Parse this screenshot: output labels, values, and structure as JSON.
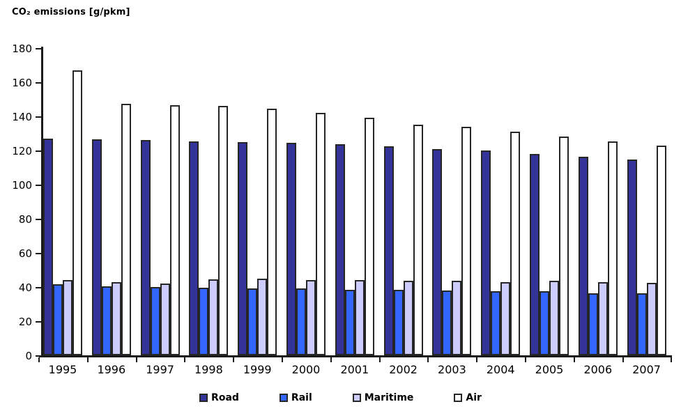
{
  "chart_data": {
    "type": "bar",
    "title": "CO₂ emissions [g/pkm]",
    "ylabel": "CO₂ emissions [g/pkm]",
    "xlabel": "",
    "categories": [
      "1995",
      "1996",
      "1997",
      "1998",
      "1999",
      "2000",
      "2001",
      "2002",
      "2003",
      "2004",
      "2005",
      "2006",
      "2007"
    ],
    "series": [
      {
        "name": "Road",
        "color": "#333399",
        "values": [
          127,
          126.5,
          126,
          125.5,
          125,
          124.5,
          123.5,
          122.5,
          121,
          120,
          118,
          116.5,
          114.5
        ]
      },
      {
        "name": "Rail",
        "color": "#3366FF",
        "values": [
          41.5,
          40.5,
          40,
          39.5,
          39,
          39,
          38.5,
          38.5,
          38,
          37.5,
          37.5,
          36.5,
          36.5
        ]
      },
      {
        "name": "Maritime",
        "color": "#CCCCFF",
        "values": [
          44,
          43,
          42,
          44.5,
          45,
          44,
          44,
          43.5,
          43.5,
          43,
          43.5,
          43,
          42.5
        ]
      },
      {
        "name": "Air",
        "color": "#FFFFFF",
        "values": [
          167,
          147.5,
          146.5,
          146,
          144.5,
          142,
          139,
          135,
          134,
          131,
          128,
          125.5,
          123
        ]
      }
    ],
    "ylim": [
      0,
      180
    ],
    "y_ticks": [
      0,
      20,
      40,
      60,
      80,
      100,
      120,
      140,
      160,
      180
    ],
    "grid": false,
    "legend_position": "bottom",
    "bar_outline_color": "#262626",
    "axis_color": "#1a1a1a"
  }
}
